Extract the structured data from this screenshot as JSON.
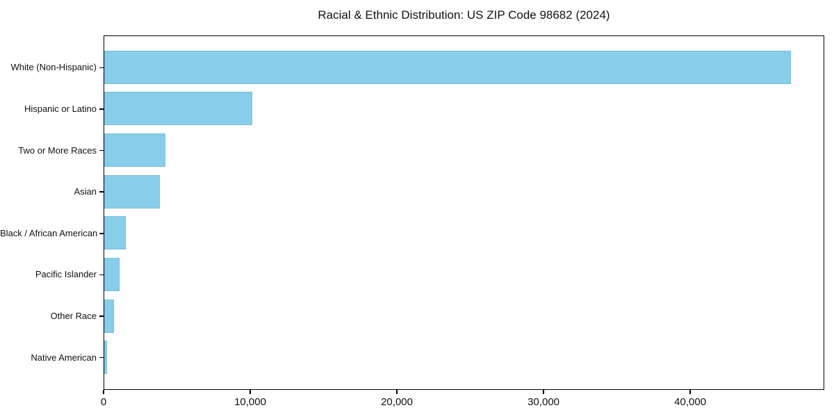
{
  "title": "Racial & Ethnic Distribution: US ZIP Code 98682 (2024)",
  "colors": {
    "bar_fill": "#87CEEB",
    "bar_edge": "#6EAAC8",
    "axis": "#000000",
    "text": "#111111",
    "background": "#FFFFFF"
  },
  "chart_data": {
    "type": "bar",
    "orientation": "horizontal",
    "title": "Racial & Ethnic Distribution: US ZIP Code 98682 (2024)",
    "categories": [
      "White (Non-Hispanic)",
      "Hispanic or Latino",
      "Two or More Races",
      "Asian",
      "Black / African American",
      "Pacific Islander",
      "Other Race",
      "Native American"
    ],
    "values": [
      46800,
      10100,
      4150,
      3800,
      1450,
      1040,
      640,
      180
    ],
    "xlabel": "",
    "ylabel": "",
    "xlim": [
      0,
      49140
    ],
    "xticks": [
      0,
      10000,
      20000,
      30000,
      40000
    ],
    "xtick_labels": [
      "0",
      "10,000",
      "20,000",
      "30,000",
      "40,000"
    ],
    "grid": false,
    "legend": null,
    "bar_color": "#87CEEB"
  }
}
